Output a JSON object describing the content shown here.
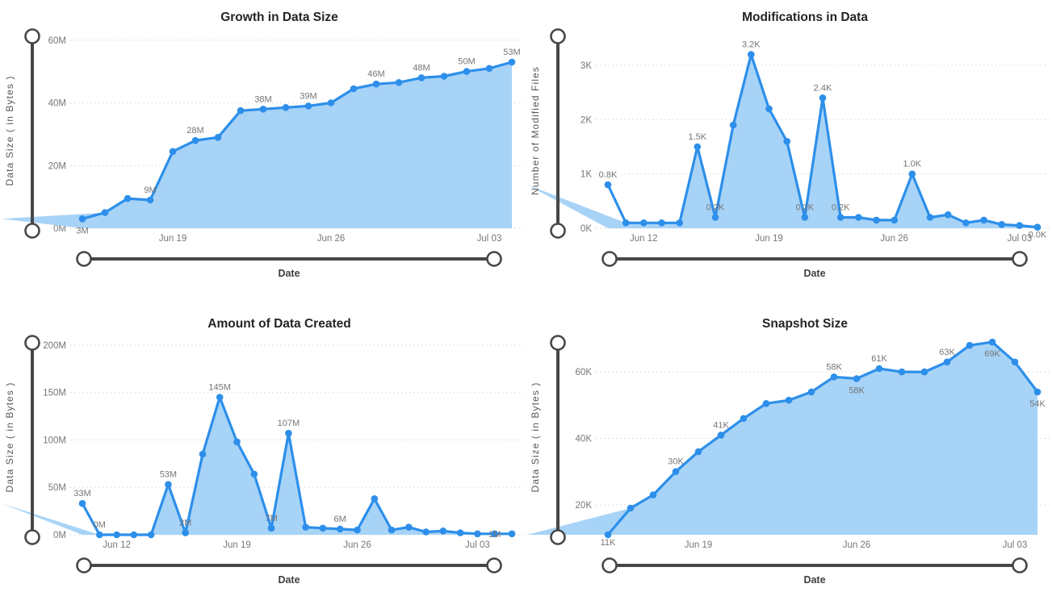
{
  "colors": {
    "line": "#2D8FEA",
    "area_fill": "#A7D3F7",
    "grid": "#DBDBDB",
    "axis_text": "#777777",
    "title_text": "#252423",
    "axis_title_text": "#595959",
    "slider": "#474747",
    "background": "#FFFFFF"
  },
  "chart_data": [
    {
      "type": "area",
      "title": "Growth in Data Size",
      "xlabel": "Date",
      "ylabel": "Data Size ( in Bytes )",
      "legend": "none",
      "grid": "dotted-horizontal",
      "y_unit": "M",
      "y_range": [
        0,
        62
      ],
      "y_ticks": [
        {
          "v": 0,
          "label": "0M"
        },
        {
          "v": 20,
          "label": "20M"
        },
        {
          "v": 40,
          "label": "40M"
        },
        {
          "v": 60,
          "label": "60M"
        }
      ],
      "x_ticks": [
        {
          "i": 4,
          "label": "Jun 19"
        },
        {
          "i": 11,
          "label": "Jun 26"
        },
        {
          "i": 18,
          "label": "Jul 03"
        }
      ],
      "values": [
        3,
        5,
        9.5,
        9,
        24.5,
        28,
        29,
        37.5,
        38,
        38.5,
        39,
        40,
        44.5,
        46,
        46.5,
        48,
        48.5,
        50,
        51,
        53
      ],
      "point_labels": [
        {
          "i": 0,
          "text": "3M",
          "pos": "below"
        },
        {
          "i": 3,
          "text": "9M",
          "pos": "above"
        },
        {
          "i": 5,
          "text": "28M",
          "pos": "above"
        },
        {
          "i": 8,
          "text": "38M",
          "pos": "above"
        },
        {
          "i": 10,
          "text": "39M",
          "pos": "above"
        },
        {
          "i": 13,
          "text": "46M",
          "pos": "above"
        },
        {
          "i": 15,
          "text": "48M",
          "pos": "above"
        },
        {
          "i": 17,
          "text": "50M",
          "pos": "above"
        },
        {
          "i": 19,
          "text": "53M",
          "pos": "above"
        }
      ]
    },
    {
      "type": "area",
      "title": "Modifications in Data",
      "xlabel": "Date",
      "ylabel": "Number of Modified Files",
      "legend": "none",
      "grid": "dotted-horizontal",
      "y_unit": "K",
      "y_range": [
        0,
        3.58
      ],
      "y_ticks": [
        {
          "v": 0,
          "label": "0K"
        },
        {
          "v": 1,
          "label": "1K"
        },
        {
          "v": 2,
          "label": "2K"
        },
        {
          "v": 3,
          "label": "3K"
        }
      ],
      "x_ticks": [
        {
          "i": 2,
          "label": "Jun 12"
        },
        {
          "i": 9,
          "label": "Jun 19"
        },
        {
          "i": 16,
          "label": "Jun 26"
        },
        {
          "i": 23,
          "label": "Jul 03"
        }
      ],
      "values": [
        0.8,
        0.1,
        0.1,
        0.1,
        0.1,
        1.5,
        0.2,
        1.9,
        3.2,
        2.2,
        1.6,
        0.2,
        2.4,
        0.2,
        0.2,
        0.15,
        0.15,
        1.0,
        0.2,
        0.25,
        0.1,
        0.15,
        0.07,
        0.05,
        0.02
      ],
      "point_labels": [
        {
          "i": 0,
          "text": "0.8K",
          "pos": "above"
        },
        {
          "i": 5,
          "text": "1.5K",
          "pos": "above"
        },
        {
          "i": 6,
          "text": "0.2K",
          "pos": "above"
        },
        {
          "i": 8,
          "text": "3.2K",
          "pos": "above"
        },
        {
          "i": 11,
          "text": "0.2K",
          "pos": "above"
        },
        {
          "i": 12,
          "text": "2.4K",
          "pos": "above"
        },
        {
          "i": 13,
          "text": "0.2K",
          "pos": "above"
        },
        {
          "i": 17,
          "text": "1.0K",
          "pos": "above"
        },
        {
          "i": 24,
          "text": "0.0K",
          "pos": "inline-below"
        }
      ]
    },
    {
      "type": "area",
      "title": "Amount of Data Created",
      "xlabel": "Date",
      "ylabel": "Data Size ( in Bytes )",
      "legend": "none",
      "grid": "dotted-horizontal",
      "y_unit": "M",
      "y_range": [
        0,
        205
      ],
      "y_ticks": [
        {
          "v": 0,
          "label": "0M"
        },
        {
          "v": 50,
          "label": "50M"
        },
        {
          "v": 100,
          "label": "100M"
        },
        {
          "v": 150,
          "label": "150M"
        },
        {
          "v": 200,
          "label": "200M"
        }
      ],
      "x_ticks": [
        {
          "i": 2,
          "label": "Jun 12"
        },
        {
          "i": 9,
          "label": "Jun 19"
        },
        {
          "i": 16,
          "label": "Jun 26"
        },
        {
          "i": 23,
          "label": "Jul 03"
        }
      ],
      "values": [
        33,
        0,
        0,
        0,
        0,
        53,
        2,
        85,
        145,
        98,
        64,
        7,
        107,
        8,
        7,
        6,
        5,
        38,
        5,
        8,
        3,
        4,
        2,
        1,
        1,
        1
      ],
      "point_labels": [
        {
          "i": 0,
          "text": "33M",
          "pos": "above"
        },
        {
          "i": 1,
          "text": "0M",
          "pos": "above"
        },
        {
          "i": 5,
          "text": "53M",
          "pos": "above"
        },
        {
          "i": 6,
          "text": "2M",
          "pos": "above"
        },
        {
          "i": 8,
          "text": "145M",
          "pos": "above"
        },
        {
          "i": 11,
          "text": "7M",
          "pos": "above"
        },
        {
          "i": 12,
          "text": "107M",
          "pos": "above"
        },
        {
          "i": 15,
          "text": "6M",
          "pos": "above"
        },
        {
          "i": 24,
          "text": "1M",
          "pos": "inline"
        }
      ]
    },
    {
      "type": "area",
      "title": "Snapshot Size",
      "xlabel": "Date",
      "ylabel": "Data Size ( in Bytes )",
      "legend": "none",
      "grid": "dotted-horizontal",
      "y_unit": "K",
      "y_range": [
        11,
        69.5
      ],
      "y_ticks": [
        {
          "v": 20,
          "label": "20K"
        },
        {
          "v": 40,
          "label": "40K"
        },
        {
          "v": 60,
          "label": "60K"
        }
      ],
      "x_ticks": [
        {
          "i": 4,
          "label": "Jun 19"
        },
        {
          "i": 11,
          "label": "Jun 26"
        },
        {
          "i": 18,
          "label": "Jul 03"
        }
      ],
      "values": [
        11,
        19,
        23,
        30,
        36,
        41,
        46,
        50.5,
        51.5,
        54,
        58.5,
        58,
        61,
        60,
        60,
        63,
        68,
        69,
        63,
        54
      ],
      "point_labels": [
        {
          "i": 0,
          "text": "11K",
          "pos": "inline-below"
        },
        {
          "i": 3,
          "text": "30K",
          "pos": "above"
        },
        {
          "i": 5,
          "text": "41K",
          "pos": "above"
        },
        {
          "i": 10,
          "text": "58K",
          "pos": "above"
        },
        {
          "i": 11,
          "text": "58K",
          "pos": "below"
        },
        {
          "i": 12,
          "text": "61K",
          "pos": "above"
        },
        {
          "i": 15,
          "text": "63K",
          "pos": "above"
        },
        {
          "i": 17,
          "text": "69K",
          "pos": "below"
        },
        {
          "i": 19,
          "text": "54K",
          "pos": "below"
        }
      ]
    }
  ]
}
